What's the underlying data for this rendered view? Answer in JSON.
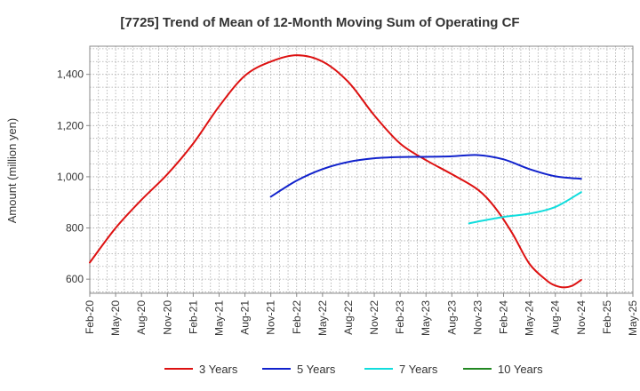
{
  "chart_data": {
    "type": "line",
    "title": "[7725]  Trend of Mean of 12-Month Moving Sum of Operating CF",
    "xlabel": "",
    "ylabel": "Amount (million yen)",
    "ylim": [
      545,
      1510
    ],
    "yticks": [
      600,
      800,
      1000,
      1200,
      1400
    ],
    "ytick_labels": [
      "600",
      "800",
      "1,000",
      "1,200",
      "1,400"
    ],
    "x_start": "2020-02",
    "x_end": "2025-05",
    "x_tick_labels": [
      "Feb-20",
      "May-20",
      "Aug-20",
      "Nov-20",
      "Feb-21",
      "May-21",
      "Aug-21",
      "Nov-21",
      "Feb-22",
      "May-22",
      "Aug-22",
      "Nov-22",
      "Feb-23",
      "May-23",
      "Aug-23",
      "Nov-23",
      "Feb-24",
      "May-24",
      "Aug-24",
      "Nov-24",
      "Feb-25",
      "May-25"
    ],
    "grid": true,
    "legend_position": "bottom",
    "series": [
      {
        "name": "3 Years",
        "color": "#dd1111",
        "x": [
          "2020-02",
          "2020-05",
          "2020-08",
          "2020-11",
          "2021-02",
          "2021-05",
          "2021-08",
          "2021-11",
          "2022-02",
          "2022-05",
          "2022-08",
          "2022-11",
          "2023-02",
          "2023-05",
          "2023-08",
          "2023-11",
          "2024-01",
          "2024-03",
          "2024-05",
          "2024-07",
          "2024-08",
          "2024-09",
          "2024-10",
          "2024-11"
        ],
        "values": [
          665,
          800,
          910,
          1010,
          1130,
          1275,
          1395,
          1450,
          1475,
          1450,
          1370,
          1240,
          1130,
          1065,
          1010,
          950,
          880,
          780,
          660,
          595,
          575,
          568,
          575,
          597
        ]
      },
      {
        "name": "5 Years",
        "color": "#1122cc",
        "x": [
          "2021-11",
          "2022-02",
          "2022-05",
          "2022-08",
          "2022-11",
          "2023-02",
          "2023-05",
          "2023-08",
          "2023-11",
          "2024-02",
          "2024-05",
          "2024-08",
          "2024-11"
        ],
        "values": [
          922,
          985,
          1030,
          1058,
          1072,
          1077,
          1078,
          1080,
          1085,
          1068,
          1030,
          1002,
          992
        ]
      },
      {
        "name": "7 Years",
        "color": "#11dddd",
        "x": [
          "2023-10",
          "2023-11",
          "2024-02",
          "2024-05",
          "2024-08",
          "2024-11"
        ],
        "values": [
          818,
          825,
          843,
          856,
          882,
          940
        ]
      },
      {
        "name": "10 Years",
        "color": "#228822",
        "x": [],
        "values": []
      }
    ]
  }
}
